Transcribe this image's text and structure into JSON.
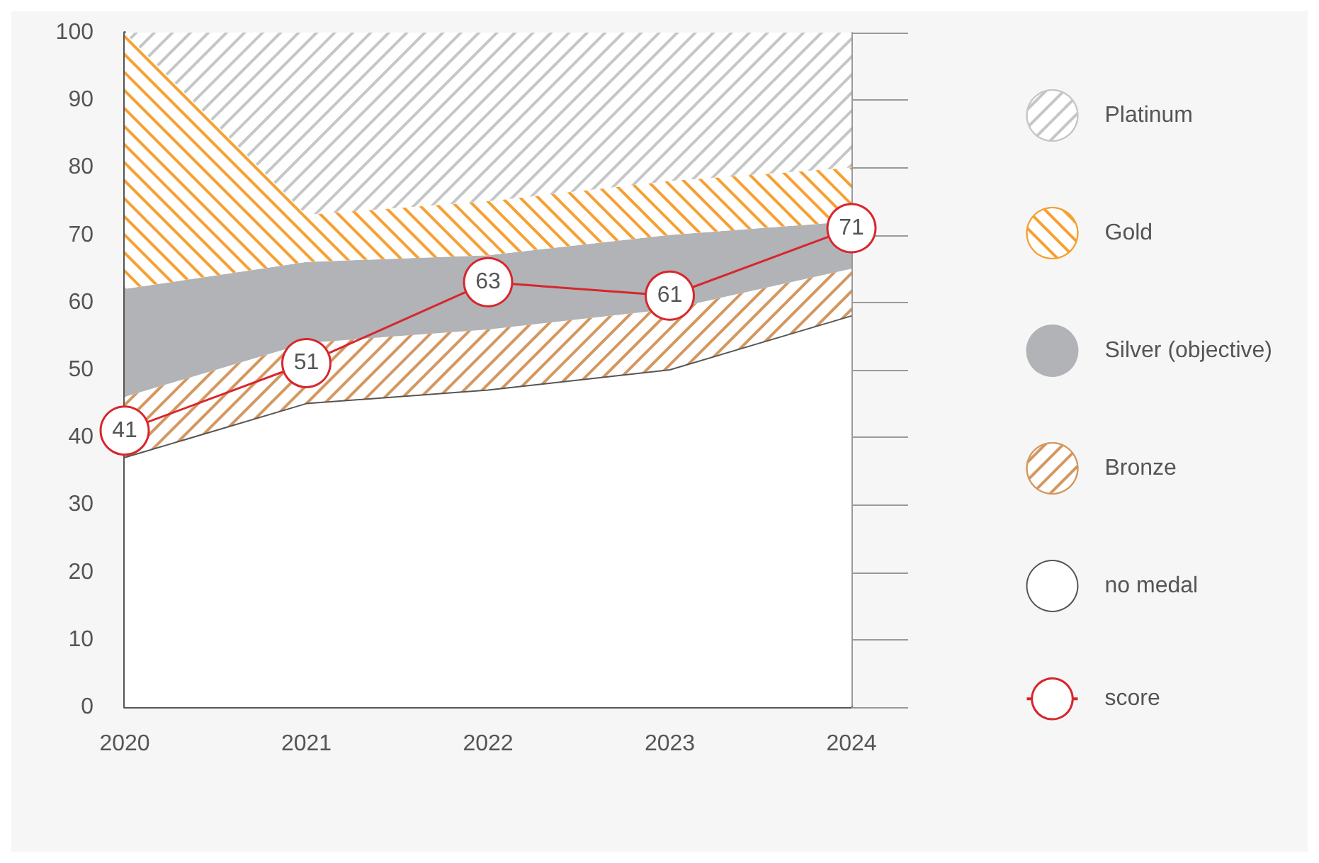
{
  "chart_data": {
    "type": "area",
    "stacked": true,
    "categories": [
      "2020",
      "2021",
      "2022",
      "2023",
      "2024"
    ],
    "ylim": [
      0,
      100
    ],
    "yticks": [
      0,
      10,
      20,
      30,
      40,
      50,
      60,
      70,
      80,
      90,
      100
    ],
    "grid": false,
    "legend": "right",
    "series": [
      {
        "name": "no medal",
        "color": "#ffffff",
        "values": [
          37,
          45,
          47,
          50,
          58
        ]
      },
      {
        "name": "Bronze",
        "color": "#d4975f",
        "values": [
          9,
          9,
          9,
          9,
          7
        ]
      },
      {
        "name": "Silver (objective)",
        "color": "#b1b3b6",
        "values": [
          16,
          12,
          11,
          11,
          7
        ]
      },
      {
        "name": "Gold",
        "color": "#f7a032",
        "values": [
          38,
          7,
          8,
          8,
          8
        ]
      },
      {
        "name": "Platinum",
        "color": "#c4c6c8",
        "values": [
          0,
          27,
          25,
          22,
          20
        ]
      },
      {
        "name": "score",
        "type": "line",
        "color": "#d7262d",
        "values": [
          41,
          51,
          63,
          61,
          71
        ],
        "marker": "circle",
        "data_labels": true
      }
    ]
  }
}
